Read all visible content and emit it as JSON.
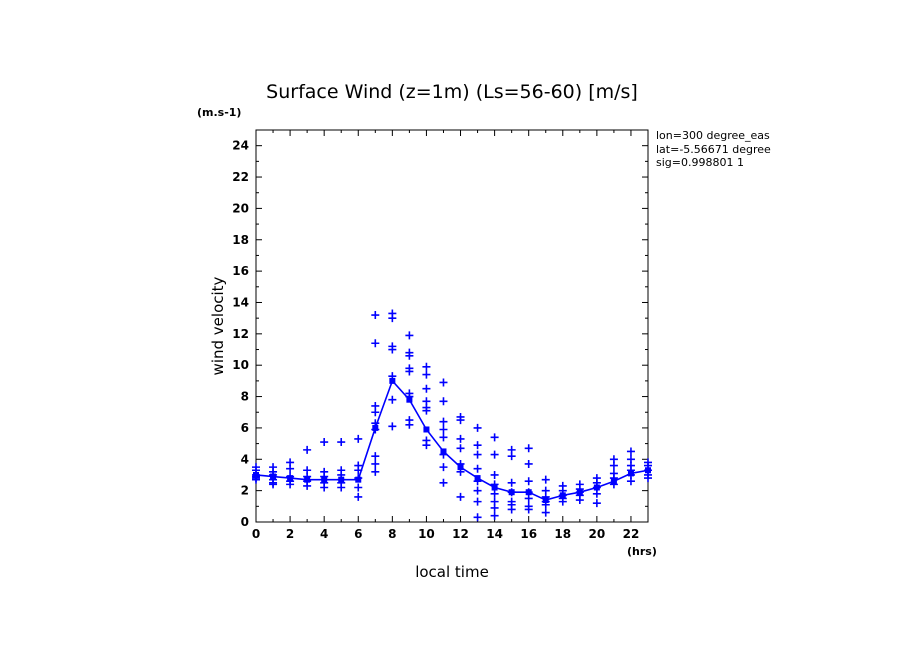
{
  "chart_data": {
    "type": "scatter",
    "title": "Surface Wind (z=1m) (Ls=56-60) [m/s]",
    "xlabel": "local time",
    "ylabel": "wind velocity",
    "x_unit": "(hrs)",
    "y_unit": "(m.s-1)",
    "xlim": [
      0,
      23
    ],
    "ylim": [
      0,
      25
    ],
    "xticks": [
      0,
      2,
      4,
      6,
      8,
      10,
      12,
      14,
      16,
      18,
      20,
      22
    ],
    "yticks": [
      0,
      2,
      4,
      6,
      8,
      10,
      12,
      14,
      16,
      18,
      20,
      22,
      24
    ],
    "info_lines": [
      "lon=300 degree_eas",
      "lat=-5.56671 degree",
      "sig=0.998801 1"
    ],
    "color": "#0000ff",
    "scatter": [
      {
        "x": 0,
        "y": [
          3.3,
          3.0,
          2.9,
          2.8,
          2.7,
          3.5
        ]
      },
      {
        "x": 1,
        "y": [
          3.5,
          3.2,
          3.0,
          2.7,
          2.4,
          2.5
        ]
      },
      {
        "x": 2,
        "y": [
          3.8,
          3.4,
          2.9,
          2.6,
          2.4
        ]
      },
      {
        "x": 3,
        "y": [
          4.6,
          3.3,
          2.9,
          2.6,
          2.3
        ]
      },
      {
        "x": 4,
        "y": [
          5.1,
          3.2,
          2.9,
          2.7,
          2.5,
          2.2
        ]
      },
      {
        "x": 5,
        "y": [
          5.1,
          3.3,
          3.0,
          2.7,
          2.5,
          2.2
        ]
      },
      {
        "x": 6,
        "y": [
          5.3,
          3.6,
          3.3,
          2.8,
          2.2,
          1.6
        ]
      },
      {
        "x": 7,
        "y": [
          13.2,
          11.4,
          7.4,
          7.0,
          6.3,
          5.9,
          4.2,
          3.7,
          3.2
        ]
      },
      {
        "x": 8,
        "y": [
          13.3,
          13.0,
          11.2,
          11.0,
          9.3,
          7.8,
          6.1
        ]
      },
      {
        "x": 9,
        "y": [
          11.9,
          10.8,
          10.6,
          9.8,
          9.6,
          8.2,
          8.0,
          6.5,
          6.2
        ]
      },
      {
        "x": 10,
        "y": [
          9.9,
          9.4,
          8.5,
          7.7,
          7.3,
          7.1,
          5.2,
          4.9
        ]
      },
      {
        "x": 11,
        "y": [
          8.9,
          7.7,
          6.4,
          5.9,
          5.4,
          4.3,
          3.5,
          2.5
        ]
      },
      {
        "x": 12,
        "y": [
          6.7,
          6.5,
          5.3,
          4.7,
          3.7,
          3.2,
          1.6
        ]
      },
      {
        "x": 13,
        "y": [
          6.0,
          4.9,
          4.3,
          3.4,
          2.6,
          2.0,
          1.3,
          0.3
        ]
      },
      {
        "x": 14,
        "y": [
          5.4,
          4.3,
          3.0,
          2.4,
          1.8,
          1.3,
          0.9,
          0.4
        ]
      },
      {
        "x": 15,
        "y": [
          4.6,
          4.2,
          2.5,
          1.9,
          1.3,
          1.1,
          0.8
        ]
      },
      {
        "x": 16,
        "y": [
          4.7,
          3.7,
          2.6,
          1.9,
          1.5,
          1.0,
          0.8
        ]
      },
      {
        "x": 17,
        "y": [
          2.7,
          2.0,
          1.6,
          1.3,
          1.1,
          0.6
        ]
      },
      {
        "x": 18,
        "y": [
          2.3,
          2.0,
          1.7,
          1.5,
          1.3
        ]
      },
      {
        "x": 19,
        "y": [
          2.4,
          2.1,
          1.9,
          1.7,
          1.4
        ]
      },
      {
        "x": 20,
        "y": [
          2.8,
          2.5,
          2.2,
          1.8,
          1.2
        ]
      },
      {
        "x": 21,
        "y": [
          4.0,
          3.6,
          3.1,
          2.8,
          2.4
        ]
      },
      {
        "x": 22,
        "y": [
          4.5,
          4.0,
          3.6,
          3.3,
          3.0,
          2.6
        ]
      },
      {
        "x": 23,
        "y": [
          3.8,
          3.6,
          3.3,
          3.0,
          2.8
        ]
      }
    ],
    "mean_line": {
      "x": [
        0,
        1,
        2,
        3,
        4,
        5,
        6,
        7,
        8,
        9,
        10,
        11,
        12,
        13,
        14,
        15,
        16,
        17,
        18,
        19,
        20,
        21,
        22,
        23
      ],
      "y": [
        3.0,
        2.9,
        2.8,
        2.7,
        2.7,
        2.7,
        2.7,
        6.0,
        9.0,
        7.8,
        5.9,
        4.5,
        3.5,
        2.8,
        2.2,
        1.9,
        1.9,
        1.4,
        1.7,
        1.9,
        2.2,
        2.6,
        3.1,
        3.3
      ]
    }
  }
}
